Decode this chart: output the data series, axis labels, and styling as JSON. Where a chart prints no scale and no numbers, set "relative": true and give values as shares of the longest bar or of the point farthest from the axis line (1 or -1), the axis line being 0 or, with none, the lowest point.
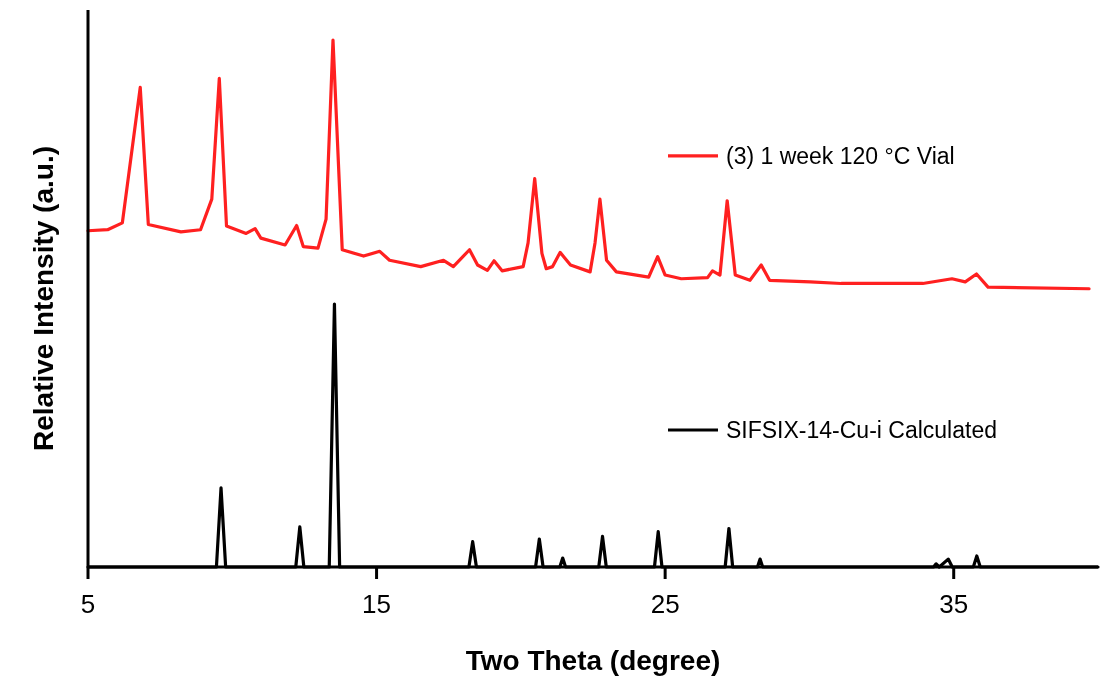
{
  "chart_data": {
    "type": "line",
    "relative": true,
    "xlabel": "Two Theta (degree)",
    "ylabel": "Relative Intensity (a.u.)",
    "xlim": [
      5,
      40
    ],
    "xticks": [
      5,
      15,
      25,
      35
    ],
    "legend": "right",
    "grid": false,
    "marker": "none",
    "line_style": "solid",
    "series": [
      {
        "name": "(3) 1 week 120 °C Vial",
        "color": "#ff2020",
        "x": [
          5,
          5.68,
          6.19,
          6.81,
          7.09,
          8.22,
          8.9,
          9.29,
          9.55,
          9.8,
          10.48,
          10.79,
          10.99,
          11.83,
          12.23,
          12.46,
          12.97,
          13.25,
          13.49,
          13.81,
          14.55,
          15.11,
          15.45,
          16.53,
          17.32,
          17.66,
          18.22,
          18.5,
          18.84,
          19.07,
          19.35,
          20.08,
          20.25,
          20.48,
          20.73,
          20.88,
          21.1,
          21.36,
          21.72,
          22.4,
          22.57,
          22.74,
          22.97,
          23.31,
          24.43,
          24.74,
          25,
          25.56,
          26.47,
          26.64,
          26.9,
          27.15,
          27.43,
          27.94,
          28.33,
          28.62,
          30.03,
          31.1,
          33.93,
          34.94,
          35.4,
          35.79,
          36.19,
          39.69
        ],
        "values": [
          0.638,
          0.64,
          0.653,
          0.91,
          0.65,
          0.636,
          0.64,
          0.698,
          0.927,
          0.647,
          0.633,
          0.642,
          0.624,
          0.611,
          0.648,
          0.608,
          0.605,
          0.66,
          1,
          0.602,
          0.59,
          0.599,
          0.582,
          0.57,
          0.582,
          0.57,
          0.602,
          0.573,
          0.563,
          0.581,
          0.562,
          0.57,
          0.615,
          0.737,
          0.595,
          0.566,
          0.57,
          0.597,
          0.573,
          0.56,
          0.615,
          0.698,
          0.582,
          0.56,
          0.55,
          0.589,
          0.554,
          0.547,
          0.549,
          0.562,
          0.554,
          0.695,
          0.554,
          0.544,
          0.573,
          0.544,
          0.541,
          0.538,
          0.538,
          0.547,
          0.541,
          0.556,
          0.531,
          0.528
        ]
      },
      {
        "name": "SIFSIX-14-Cu-i Calculated",
        "color": "#000000",
        "x": [
          5,
          9.45,
          9.61,
          9.77,
          12.2,
          12.34,
          12.48,
          13.36,
          13.54,
          13.72,
          18.2,
          18.33,
          18.46,
          20.51,
          20.64,
          20.77,
          21.35,
          21.45,
          21.55,
          22.7,
          22.83,
          22.96,
          24.63,
          24.76,
          24.89,
          27.08,
          27.21,
          27.34,
          28.2,
          28.29,
          28.38,
          34.3,
          34.39,
          34.5,
          34.81,
          34.95,
          35.68,
          35.8,
          35.92,
          40
        ],
        "values": [
          0,
          0,
          0.15,
          0,
          0,
          0.076,
          0,
          0,
          0.499,
          0,
          0,
          0.048,
          0,
          0,
          0.053,
          0,
          0,
          0.017,
          0,
          0,
          0.058,
          0,
          0,
          0.067,
          0,
          0,
          0.073,
          0,
          0,
          0.015,
          0,
          0,
          0.006,
          0,
          0.015,
          0,
          0,
          0.021,
          0,
          0
        ]
      }
    ]
  }
}
